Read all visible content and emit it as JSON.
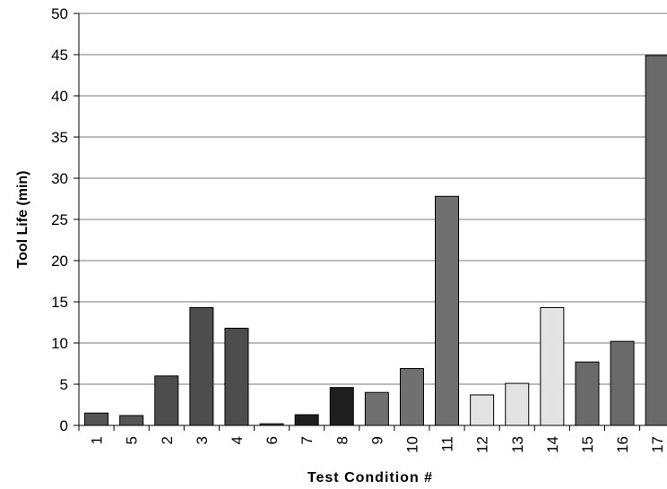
{
  "chart_data": {
    "type": "bar",
    "title": "",
    "xlabel": "Test Condition #",
    "ylabel": "Tool Life (min)",
    "ylim": [
      0,
      50
    ],
    "yticks": [
      0,
      5,
      10,
      15,
      20,
      25,
      30,
      35,
      40,
      45,
      50
    ],
    "grid": true,
    "legend": "none",
    "categories": [
      "1",
      "5",
      "2",
      "3",
      "4",
      "6",
      "7",
      "8",
      "9",
      "10",
      "11",
      "12",
      "13",
      "14",
      "15",
      "16",
      "17"
    ],
    "values": [
      1.5,
      1.2,
      6.0,
      14.3,
      11.8,
      0.2,
      1.3,
      4.6,
      4.0,
      6.9,
      27.8,
      3.7,
      5.1,
      14.3,
      7.7,
      10.2,
      44.9
    ],
    "bar_colors": [
      "#555555",
      "#555555",
      "#4d4d4d",
      "#4d4d4d",
      "#4d4d4d",
      "#4d4d4d",
      "#1f1f1f",
      "#1f1f1f",
      "#707070",
      "#707070",
      "#707070",
      "#e3e3e3",
      "#e3e3e3",
      "#e3e3e3",
      "#6a6a6a",
      "#6a6a6a",
      "#6a6a6a"
    ]
  }
}
